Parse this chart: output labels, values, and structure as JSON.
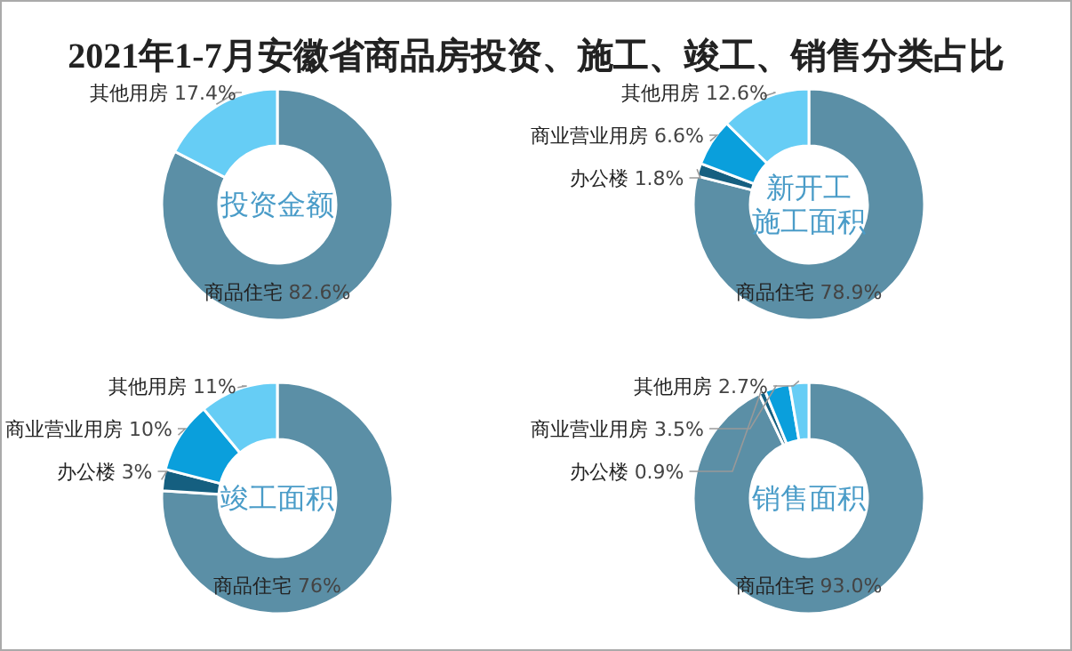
{
  "chart_data": [
    {
      "type": "other",
      "title": "2021年1-7月安徽省商品房投资、施工、竣工、销售分类占比"
    },
    {
      "type": "donut",
      "title": "投资金额",
      "categories": [
        "商品住宅",
        "其他用房"
      ],
      "values": [
        82.6,
        17.4
      ],
      "colors": [
        "#5b8fa6",
        "#66cdf5"
      ],
      "value_labels": [
        "82.6%",
        "17.4%"
      ]
    },
    {
      "type": "donut",
      "title": "新开工施工面积",
      "categories": [
        "商品住宅",
        "办公楼",
        "商业营业用房",
        "其他用房"
      ],
      "values": [
        78.9,
        1.8,
        6.6,
        12.6
      ],
      "colors": [
        "#5b8fa6",
        "#155f80",
        "#0a9fdc",
        "#66cdf5"
      ],
      "value_labels": [
        "78.9%",
        "1.8%",
        "6.6%",
        "12.6%"
      ]
    },
    {
      "type": "donut",
      "title": "竣工面积",
      "categories": [
        "商品住宅",
        "办公楼",
        "商业营业用房",
        "其他用房"
      ],
      "values": [
        76,
        3,
        10,
        11
      ],
      "colors": [
        "#5b8fa6",
        "#155f80",
        "#0a9fdc",
        "#66cdf5"
      ],
      "value_labels": [
        "76%",
        "3%",
        "10%",
        "11%"
      ]
    },
    {
      "type": "donut",
      "title": "销售面积",
      "categories": [
        "商品住宅",
        "办公楼",
        "商业营业用房",
        "其他用房"
      ],
      "values": [
        93.0,
        0.9,
        3.5,
        2.7
      ],
      "colors": [
        "#5b8fa6",
        "#155f80",
        "#0a9fdc",
        "#66cdf5"
      ],
      "value_labels": [
        "93.0%",
        "0.9%",
        "3.5%",
        "2.7%"
      ]
    }
  ]
}
